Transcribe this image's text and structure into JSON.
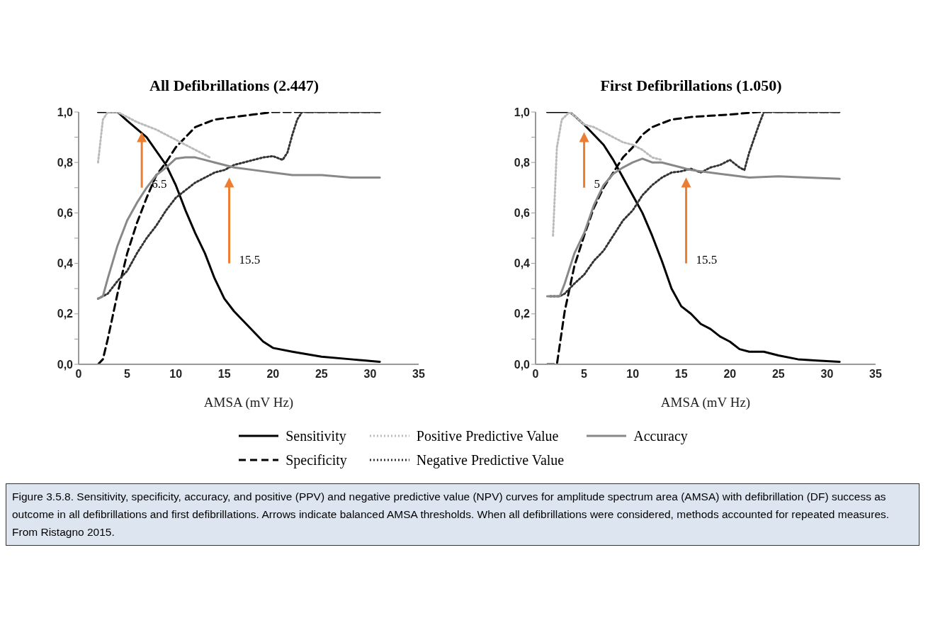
{
  "chart_data": [
    {
      "type": "line",
      "title": "All Defibrillations (2.447)",
      "xlabel": "AMSA (mV Hz)",
      "xlim": [
        0,
        35
      ],
      "xticks": [
        0,
        5,
        10,
        15,
        20,
        25,
        30,
        35
      ],
      "ylim": [
        0,
        1
      ],
      "yticks": [
        {
          "value": 0,
          "label": "0,0"
        },
        {
          "value": 0.1,
          "label": null
        },
        {
          "value": 0.2,
          "label": "0,2"
        },
        {
          "value": 0.3,
          "label": null
        },
        {
          "value": 0.4,
          "label": "0,4"
        },
        {
          "value": 0.5,
          "label": null
        },
        {
          "value": 0.6,
          "label": "0,6"
        },
        {
          "value": 0.7,
          "label": null
        },
        {
          "value": 0.8,
          "label": "0,8"
        },
        {
          "value": 0.9,
          "label": null
        },
        {
          "value": 1,
          "label": "1,0"
        }
      ],
      "grid": false,
      "legend": false,
      "marker": "none",
      "series": [
        {
          "color": "#000000",
          "line_style": "solid",
          "x": [
            2,
            4,
            5,
            7,
            9,
            10,
            11,
            12,
            13,
            14,
            15,
            16,
            17,
            18,
            19,
            20,
            22,
            25,
            28,
            31
          ],
          "values": [
            1.0,
            1.0,
            0.965,
            0.9,
            0.79,
            0.71,
            0.61,
            0.52,
            0.44,
            0.34,
            0.26,
            0.21,
            0.17,
            0.13,
            0.09,
            0.065,
            0.05,
            0.03,
            0.02,
            0.01
          ]
        },
        {
          "color": "#000000",
          "line_style": "dashed",
          "x": [
            2,
            2.5,
            3,
            3.5,
            4,
            5,
            6,
            7,
            8,
            9,
            10,
            11,
            12,
            14,
            16,
            18,
            20,
            31
          ],
          "values": [
            0.0,
            0.02,
            0.1,
            0.19,
            0.28,
            0.44,
            0.56,
            0.66,
            0.75,
            0.8,
            0.86,
            0.9,
            0.94,
            0.97,
            0.98,
            0.99,
            1.0,
            1.0
          ]
        },
        {
          "color": "#bbbbbb",
          "line_style": "dotted",
          "x": [
            2,
            2.5,
            3,
            4,
            6,
            8,
            10,
            12,
            13.5
          ],
          "values": [
            0.8,
            0.97,
            1.0,
            1.0,
            0.96,
            0.93,
            0.89,
            0.85,
            0.82
          ]
        },
        {
          "color": "#333333",
          "line_style": "dotted",
          "x": [
            2,
            3,
            4,
            5,
            6,
            7,
            8,
            9,
            10,
            11,
            12,
            13,
            14,
            15,
            16,
            17,
            18,
            19,
            20,
            21,
            21.5,
            22,
            22.5,
            23,
            31
          ],
          "values": [
            0.26,
            0.28,
            0.33,
            0.37,
            0.44,
            0.5,
            0.55,
            0.61,
            0.66,
            0.69,
            0.72,
            0.74,
            0.76,
            0.77,
            0.79,
            0.8,
            0.81,
            0.82,
            0.825,
            0.81,
            0.84,
            0.91,
            0.97,
            1.0,
            1.0
          ]
        },
        {
          "color": "#888888",
          "line_style": "solid",
          "x": [
            2,
            2.5,
            3,
            4,
            5,
            6,
            7,
            8,
            9,
            10,
            11,
            12,
            13,
            14,
            15,
            16,
            18,
            20,
            22,
            25,
            28,
            31
          ],
          "values": [
            0.26,
            0.27,
            0.34,
            0.47,
            0.57,
            0.64,
            0.7,
            0.75,
            0.78,
            0.815,
            0.82,
            0.82,
            0.81,
            0.8,
            0.79,
            0.78,
            0.77,
            0.76,
            0.75,
            0.75,
            0.74,
            0.74
          ]
        }
      ],
      "ref_lines": [
        {
          "axis": "x",
          "value": 6.5,
          "label": "6.5",
          "color": "#ed7d31"
        },
        {
          "axis": "x",
          "value": 15.5,
          "label": "15.5",
          "color": "#ed7d31"
        }
      ]
    },
    {
      "type": "line",
      "title": "First Defibrillations (1.050)",
      "xlabel": "AMSA (mV Hz)",
      "xlim": [
        0,
        35
      ],
      "xticks": [
        0,
        5,
        10,
        15,
        20,
        25,
        30,
        35
      ],
      "ylim": [
        0,
        1
      ],
      "yticks": [
        {
          "value": 0,
          "label": "0,0"
        },
        {
          "value": 0.1,
          "label": null
        },
        {
          "value": 0.2,
          "label": "0,2"
        },
        {
          "value": 0.3,
          "label": null
        },
        {
          "value": 0.4,
          "label": "0,4"
        },
        {
          "value": 0.5,
          "label": null
        },
        {
          "value": 0.6,
          "label": "0,6"
        },
        {
          "value": 0.7,
          "label": null
        },
        {
          "value": 0.8,
          "label": "0,8"
        },
        {
          "value": 0.9,
          "label": null
        },
        {
          "value": 1,
          "label": "1,0"
        }
      ],
      "grid": false,
      "legend": "bottom",
      "marker": "none",
      "series": [
        {
          "name": "Sensitivity",
          "color": "#000000",
          "line_style": "solid",
          "x": [
            1.2,
            3.5,
            4,
            5,
            6,
            7,
            8,
            9,
            10,
            11,
            12,
            13,
            14,
            15,
            16,
            17,
            18,
            19,
            20,
            21,
            22,
            23.5,
            25,
            27,
            29,
            31.3
          ],
          "values": [
            1.0,
            1.0,
            0.985,
            0.95,
            0.91,
            0.87,
            0.81,
            0.74,
            0.67,
            0.6,
            0.51,
            0.41,
            0.3,
            0.23,
            0.2,
            0.16,
            0.14,
            0.11,
            0.09,
            0.06,
            0.05,
            0.05,
            0.035,
            0.02,
            0.015,
            0.01
          ]
        },
        {
          "name": "Specificity",
          "color": "#000000",
          "line_style": "dashed",
          "x": [
            1.2,
            2.2,
            3,
            3.5,
            4,
            5,
            6,
            7,
            8,
            9,
            10,
            11,
            12,
            14,
            16,
            18,
            20,
            23,
            31.3
          ],
          "values": [
            0.0,
            0.0,
            0.21,
            0.3,
            0.39,
            0.51,
            0.62,
            0.7,
            0.76,
            0.82,
            0.86,
            0.91,
            0.94,
            0.97,
            0.98,
            0.985,
            0.99,
            1.0,
            1.0
          ]
        },
        {
          "name": "Positive Predictive Value",
          "color": "#bbbbbb",
          "line_style": "dotted",
          "x": [
            1.8,
            2.2,
            2.7,
            3.5,
            4,
            5,
            6,
            7,
            8,
            9,
            10,
            11,
            12,
            13
          ],
          "values": [
            0.51,
            0.86,
            0.97,
            1.0,
            0.985,
            0.95,
            0.94,
            0.92,
            0.9,
            0.88,
            0.87,
            0.85,
            0.82,
            0.81
          ]
        },
        {
          "name": "Negative Predictive Value",
          "color": "#333333",
          "line_style": "dotted",
          "x": [
            1.5,
            2.5,
            3,
            4,
            5,
            6,
            7,
            8,
            9,
            10,
            11,
            12,
            13,
            14,
            15,
            16,
            17,
            18,
            19,
            20,
            21,
            21.5,
            22,
            23,
            23.5,
            31.3
          ],
          "values": [
            0.27,
            0.27,
            0.28,
            0.32,
            0.355,
            0.41,
            0.45,
            0.51,
            0.57,
            0.61,
            0.67,
            0.71,
            0.74,
            0.76,
            0.765,
            0.775,
            0.76,
            0.78,
            0.79,
            0.81,
            0.78,
            0.77,
            0.84,
            0.95,
            1.0,
            1.0
          ]
        },
        {
          "name": "Accuracy",
          "color": "#888888",
          "line_style": "solid",
          "x": [
            1.2,
            2.5,
            3,
            4,
            5,
            6,
            7,
            8,
            9,
            10,
            11,
            12,
            13,
            14,
            15,
            16,
            18,
            20,
            22,
            25,
            28,
            31.3
          ],
          "values": [
            0.27,
            0.27,
            0.32,
            0.44,
            0.52,
            0.63,
            0.71,
            0.755,
            0.78,
            0.8,
            0.815,
            0.8,
            0.8,
            0.79,
            0.78,
            0.77,
            0.76,
            0.75,
            0.74,
            0.745,
            0.74,
            0.735
          ]
        }
      ],
      "ref_lines": [
        {
          "axis": "x",
          "value": 5,
          "label": "5",
          "color": "#ed7d31"
        },
        {
          "axis": "x",
          "value": 15.5,
          "label": "15.5",
          "color": "#ed7d31"
        }
      ],
      "annotations": [
        "Figure 3.5.8. Sensitivity, specificity, accuracy, and positive (PPV) and negative predictive value (NPV) curves for amplitude spectrum area (AMSA) with defibrillation (DF) success as outcome in all defibrillations and first defibrillations. Arrows indicate balanced AMSA thresholds. When all defibrillations were considered, methods accounted for repeated measures. From Ristagno 2015."
      ]
    }
  ]
}
